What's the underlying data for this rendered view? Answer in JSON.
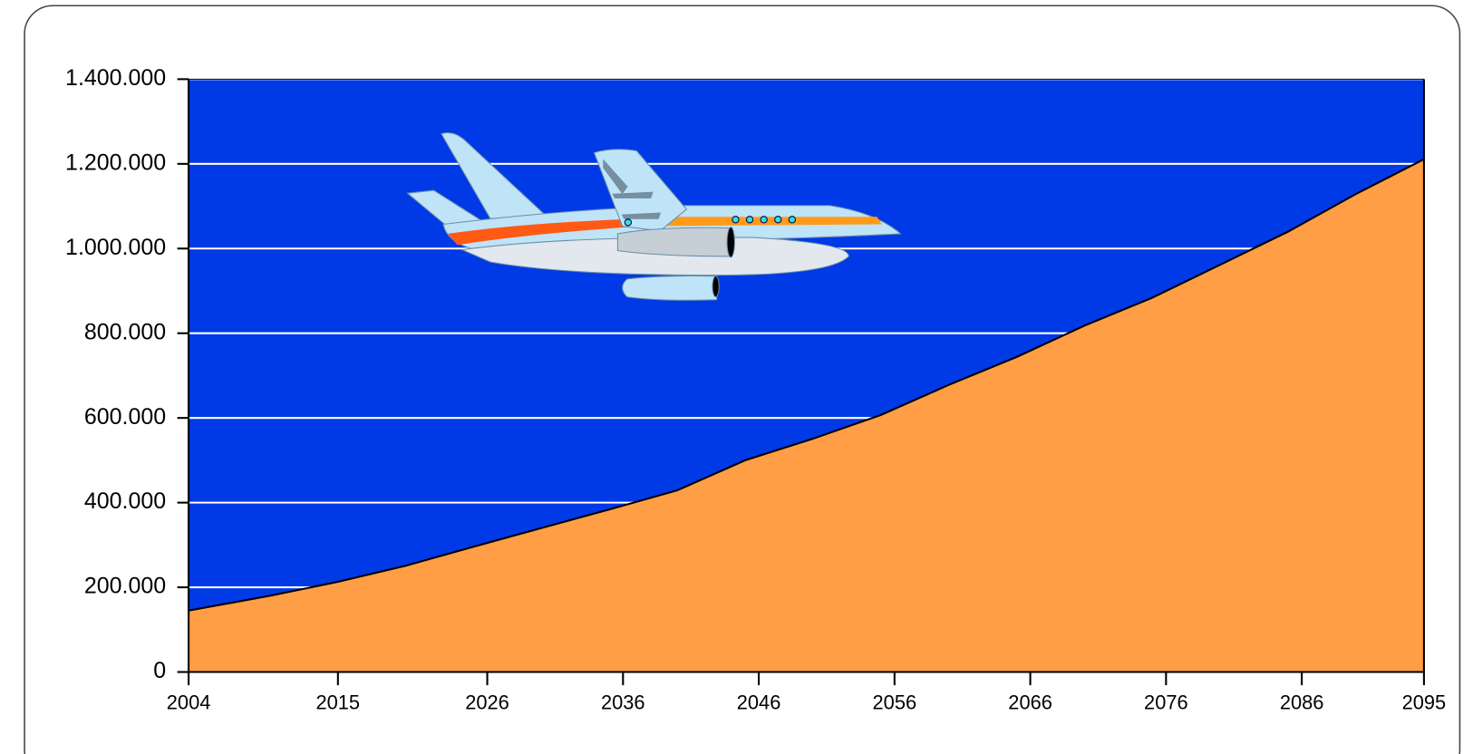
{
  "chart_data": {
    "type": "area",
    "x": [
      2004,
      2010,
      2015,
      2020,
      2025,
      2030,
      2035,
      2040,
      2045,
      2050,
      2055,
      2060,
      2065,
      2070,
      2075,
      2080,
      2085,
      2090,
      2095
    ],
    "values": [
      145000,
      180000,
      213000,
      251000,
      296000,
      340000,
      384000,
      429000,
      500000,
      551000,
      607000,
      678000,
      744000,
      818000,
      884000,
      962000,
      1040000,
      1129000,
      1211000
    ],
    "color": "#ff9e44",
    "background": "#0039e6",
    "xlim": [
      2004,
      2095
    ],
    "xticks": [
      2004,
      2015,
      2026,
      2036,
      2046,
      2056,
      2066,
      2076,
      2086,
      2095
    ],
    "ylim": [
      0,
      1400000
    ],
    "yticks": [
      0,
      {
        "value": 200000,
        "label": "200.000"
      },
      {
        "value": 400000,
        "label": "400.000"
      },
      {
        "value": 600000,
        "label": "600.000"
      },
      {
        "value": 800000,
        "label": "800.000"
      },
      {
        "value": 1000000,
        "label": "1.000.000"
      },
      {
        "value": 1200000,
        "label": "1.200.000"
      },
      {
        "value": 1400000,
        "label": "1.400.000"
      }
    ],
    "grid": true
  }
}
